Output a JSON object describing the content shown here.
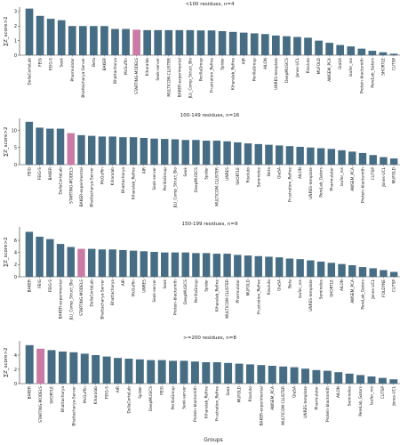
{
  "figure": {
    "xlabel": "Groups"
  },
  "colors": {
    "bar": "#466d83",
    "highlight": "#c97ba6",
    "axis": "#333333"
  },
  "chart_data": [
    {
      "type": "bar",
      "title": "<100 residues, n=4",
      "ylabel": "∑Z_score>2",
      "yticks": [
        0,
        1,
        2,
        3
      ],
      "ylim": [
        0,
        3.3
      ],
      "highlight": "STARTING-MODELS",
      "categories": [
        "DellaCorteLab",
        "FEIG",
        "FEIG-S",
        "Seok",
        "Pharmulator",
        "Bhattacharya-Server",
        "Beta",
        "BAKER",
        "Bhattacharya",
        "McGuffin",
        "STARTING-MODELS",
        "Kiharalab",
        "Seok-server",
        "MULTICOM-CLUSTER",
        "BAKER-experimental",
        "JLU_Comp_Struct_Bio",
        "PerillaGroup",
        "Frustration_Refine",
        "Spider",
        "Kiharalab_Refine",
        "AIR",
        "PerillaGroup",
        "AILON",
        "UNRES-template",
        "DeepMUSICS",
        "Jones-UCL",
        "Risoluto",
        "MUFOLD",
        "AWSEM_PCA",
        "GlaSA",
        "laufer_ros",
        "Protein-blacksmith",
        "PereLab_Gators",
        "SHORTLE",
        "CUTSP"
      ],
      "values": [
        3.2,
        2.7,
        2.5,
        2.4,
        2.0,
        2.0,
        2.0,
        2.0,
        1.8,
        1.8,
        1.75,
        1.72,
        1.72,
        1.72,
        1.72,
        1.72,
        1.7,
        1.7,
        1.65,
        1.6,
        1.55,
        1.5,
        1.45,
        1.35,
        1.3,
        1.25,
        1.2,
        1.0,
        0.85,
        0.7,
        0.6,
        0.45,
        0.3,
        0.2,
        0.1
      ]
    },
    {
      "type": "bar",
      "title": "100-149 residues, n=16",
      "ylabel": "∑Z_score>2",
      "yticks": [
        0,
        5,
        10
      ],
      "ylim": [
        0,
        13.5
      ],
      "highlight": "STARTING-MODELS",
      "categories": [
        "FEIG",
        "FEIG-S",
        "BAKER",
        "DellaCorteLab",
        "STARTING-MODELS",
        "BAKER-experimental",
        "Bhattacharya-Server",
        "McGuffin",
        "Kiharalab",
        "Bhattacharya",
        "Kiharalab_Refine",
        "AIR",
        "Seok-server",
        "PerillaGroup",
        "JLU_Comp_Struct_Bio",
        "Seok",
        "DeepMUSICS",
        "Spider",
        "MULTICOM-CLUSTER",
        "UNRES",
        "SHORTLE",
        "Risoluto",
        "Seminoles",
        "Beta",
        "GlaSA",
        "Frustration_Refine",
        "AILON",
        "UNRES-template",
        "PereLab_Gators",
        "Pharmulator",
        "laufer_ros",
        "AWSEM_PCA",
        "Protein-blacksmith",
        "CUTSP",
        "Jones-UCL",
        "MUFOLD"
      ],
      "values": [
        12.5,
        10.8,
        10.5,
        10.5,
        9.2,
        8.6,
        8.4,
        8.2,
        8.2,
        8.0,
        8.0,
        7.8,
        7.6,
        7.5,
        7.4,
        7.2,
        7.2,
        7.0,
        7.0,
        6.8,
        6.5,
        6.2,
        6.0,
        5.8,
        5.6,
        5.4,
        5.2,
        5.0,
        4.8,
        4.6,
        4.2,
        3.8,
        3.4,
        2.8,
        2.2,
        1.8
      ]
    },
    {
      "type": "bar",
      "title": "150-199 residues, n=9",
      "ylabel": "∑Z_score>2",
      "yticks": [
        0,
        2,
        4,
        6
      ],
      "ylim": [
        0,
        8.2
      ],
      "highlight": "STARTING-MODELS",
      "categories": [
        "BAKER",
        "FEIG",
        "FEIG-S",
        "BAKER-experimental",
        "JLU_Comp_Struct_Bio",
        "STARTING-MODELS",
        "DellaCorteLab",
        "Bhattacharya-Server",
        "Bhattacharya",
        "AIR",
        "McGuffin",
        "UNRES",
        "Seok-server",
        "Seok",
        "Protein-blacksmith",
        "DeepMUSICS",
        "PerillaGroup",
        "Spider",
        "Kiharalab_Refine",
        "MULTICOM-CLUSTER",
        "Pharmulator",
        "MUFOLD",
        "Frustration_Refine",
        "Risoluto",
        "GlaSA",
        "Beta",
        "laufer_ros",
        "UNRES-template",
        "Seminoles",
        "SHORTLE",
        "AILON",
        "AWSEM_PCA",
        "PereLab_Gators",
        "Jones-UCL",
        "FOLDYNE",
        "CUTSP"
      ],
      "values": [
        7.4,
        6.6,
        6.2,
        5.4,
        4.9,
        4.6,
        4.6,
        4.5,
        4.5,
        4.4,
        4.3,
        4.2,
        4.1,
        4.0,
        4.0,
        4.0,
        3.9,
        3.9,
        3.8,
        3.8,
        3.6,
        3.5,
        3.4,
        3.3,
        3.2,
        3.0,
        2.9,
        2.7,
        2.5,
        2.3,
        2.1,
        1.9,
        1.6,
        1.4,
        1.1,
        0.8
      ]
    },
    {
      "type": "bar",
      "title": ">=200 residues, n=8",
      "ylabel": "∑Z_score>2",
      "yticks": [
        0,
        2,
        4
      ],
      "ylim": [
        0,
        6
      ],
      "highlight": "STARTING-MODELS",
      "categories": [
        "BAKER",
        "STARTING-MODELS",
        "SHORTLE",
        "Bhattacharya",
        "Bhattacharya-Server",
        "McGuffin",
        "Kiharalab",
        "FEIG-S",
        "AIR",
        "DellaCorteLab",
        "Spider",
        "DeepMUSICS",
        "FEIG",
        "PerillaGroup",
        "Seok-server",
        "Protein-blacksmith",
        "Kiharalab_Refine",
        "Frustration_Refine",
        "Seok",
        "MUFOLD",
        "Risoluto",
        "BAKER-experimental",
        "AWSEM_PCA",
        "MULTICOM-CLUSTER",
        "GlaSA",
        "UNRES-template",
        "Pharmulator",
        "Protein-blacksmith",
        "AILON",
        "Seminoles",
        "PereLab_Gators",
        "laufer_ros",
        "CUTSP",
        "Jones-UCL"
      ],
      "values": [
        5.4,
        4.9,
        4.7,
        4.5,
        4.4,
        4.2,
        4.0,
        3.8,
        3.6,
        3.5,
        3.4,
        3.3,
        3.3,
        3.2,
        3.2,
        3.1,
        3.0,
        3.0,
        2.9,
        2.8,
        2.7,
        2.6,
        2.5,
        2.4,
        2.3,
        2.1,
        1.9,
        1.8,
        1.6,
        1.4,
        1.2,
        1.0,
        0.8,
        0.6
      ]
    }
  ]
}
